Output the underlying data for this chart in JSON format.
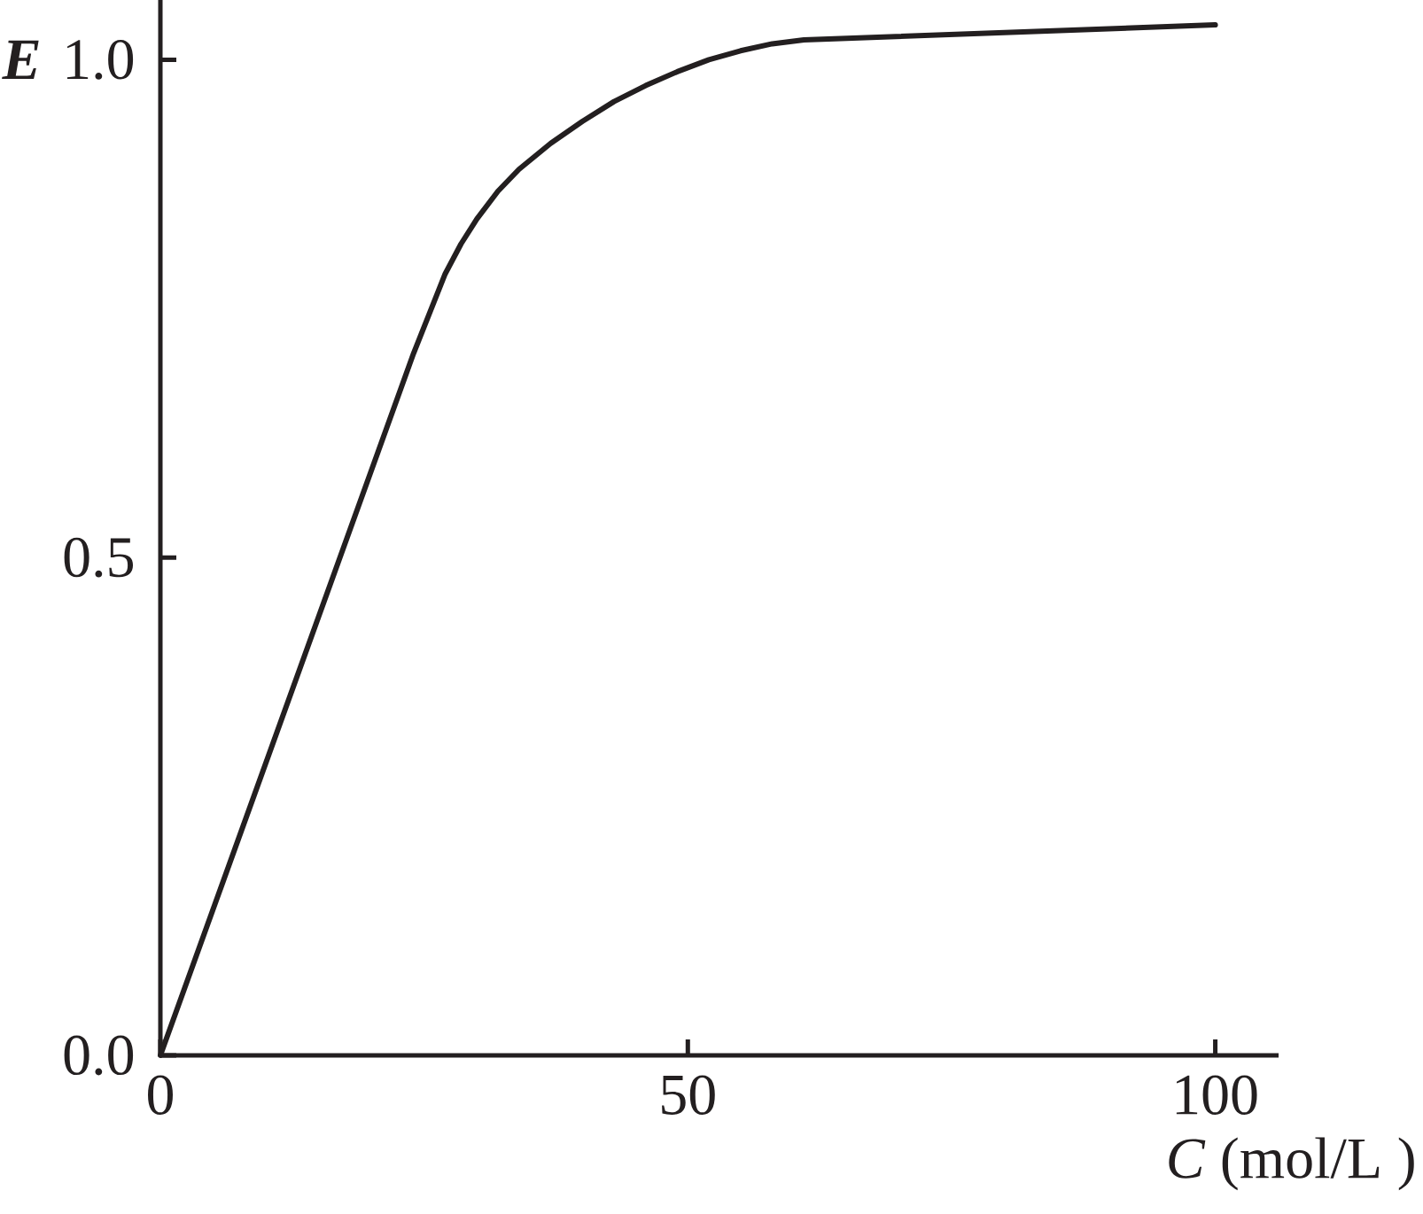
{
  "chart_data": {
    "type": "line",
    "xlabel": "*C* (mol/L )",
    "ylabel": "E",
    "x": [
      0,
      24,
      25.5,
      27,
      28.5,
      30,
      32,
      34,
      37,
      40,
      43,
      46,
      49,
      52,
      55,
      58,
      61,
      100
    ],
    "series": [
      {
        "color": "#231f20",
        "values": [
          0,
          0.705,
          0.745,
          0.785,
          0.815,
          0.84,
          0.868,
          0.89,
          0.916,
          0.938,
          0.958,
          0.974,
          0.988,
          1.0,
          1.009,
          1.016,
          1.02,
          1.035
        ]
      }
    ],
    "xlim": [
      0,
      106
    ],
    "ylim": [
      0,
      1.06
    ],
    "xticks": [
      0,
      50,
      100
    ],
    "yticks": [
      {
        "value": 0,
        "label": "0.0"
      },
      {
        "value": 0.5,
        "label": "0.5"
      },
      {
        "value": 1,
        "label": "1.0"
      }
    ],
    "line_style": "solid"
  }
}
